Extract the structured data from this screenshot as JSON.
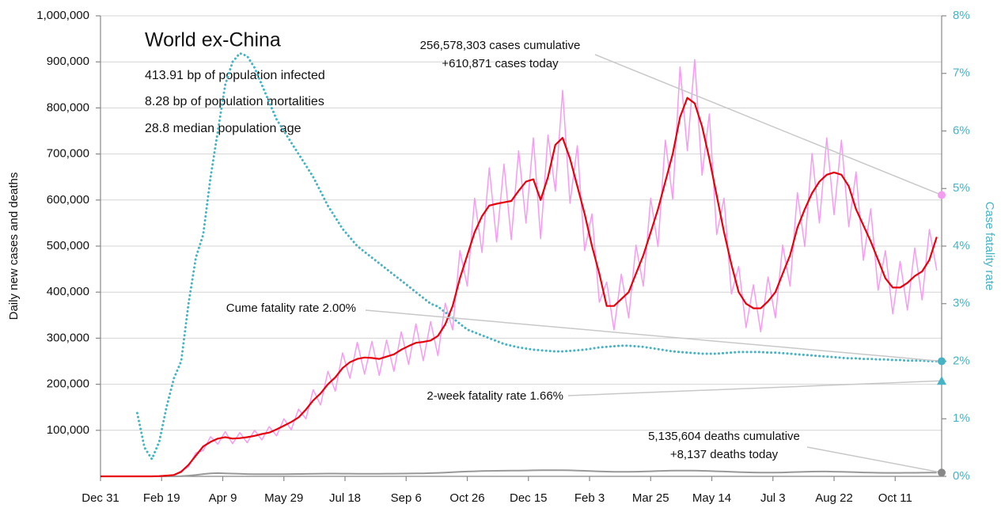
{
  "chart_data": {
    "type": "line",
    "title": "World ex-China",
    "subtitle": [
      "413.91 bp of population infected",
      "8.28 bp of population mortalities",
      "28.8 median population age"
    ],
    "ylabel": "Daily new cases and deaths",
    "y2label": "Case fatality rate",
    "xlim": [
      0,
      688
    ],
    "xticks": [
      {
        "value": 0,
        "label": "Dec 31"
      },
      {
        "value": 50,
        "label": "Feb 19"
      },
      {
        "value": 100,
        "label": "Apr 9"
      },
      {
        "value": 150,
        "label": "May 29"
      },
      {
        "value": 200,
        "label": "Jul 18"
      },
      {
        "value": 250,
        "label": "Sep 6"
      },
      {
        "value": 300,
        "label": "Oct 26"
      },
      {
        "value": 350,
        "label": "Dec 15"
      },
      {
        "value": 400,
        "label": "Feb 3"
      },
      {
        "value": 450,
        "label": "Mar 25"
      },
      {
        "value": 500,
        "label": "May 14"
      },
      {
        "value": 550,
        "label": "Jul 3"
      },
      {
        "value": 600,
        "label": "Aug 22"
      },
      {
        "value": 650,
        "label": "Oct 11"
      }
    ],
    "ylim": [
      0,
      1000000
    ],
    "yticks": [
      {
        "value": 100000,
        "label": "100,000"
      },
      {
        "value": 200000,
        "label": "200,000"
      },
      {
        "value": 300000,
        "label": "300,000"
      },
      {
        "value": 400000,
        "label": "400,000"
      },
      {
        "value": 500000,
        "label": "500,000"
      },
      {
        "value": 600000,
        "label": "600,000"
      },
      {
        "value": 700000,
        "label": "700,000"
      },
      {
        "value": 800000,
        "label": "800,000"
      },
      {
        "value": 900000,
        "label": "900,000"
      },
      {
        "value": 1000000,
        "label": "1,000,000"
      }
    ],
    "y2lim": [
      0,
      8
    ],
    "y2ticks": [
      {
        "value": 0,
        "label": "0%"
      },
      {
        "value": 1,
        "label": "1%"
      },
      {
        "value": 2,
        "label": "2%"
      },
      {
        "value": 3,
        "label": "3%"
      },
      {
        "value": 4,
        "label": "4%"
      },
      {
        "value": 5,
        "label": "5%"
      },
      {
        "value": 6,
        "label": "6%"
      },
      {
        "value": 7,
        "label": "7%"
      },
      {
        "value": 8,
        "label": "8%"
      }
    ],
    "y2color": "#45b3c4",
    "grid": true,
    "x": [
      0,
      6,
      12,
      18,
      24,
      30,
      36,
      42,
      48,
      54,
      60,
      66,
      72,
      78,
      84,
      90,
      96,
      102,
      108,
      114,
      120,
      126,
      132,
      138,
      144,
      150,
      156,
      162,
      168,
      174,
      180,
      186,
      192,
      198,
      204,
      210,
      216,
      222,
      228,
      234,
      240,
      246,
      252,
      258,
      264,
      270,
      276,
      282,
      288,
      294,
      300,
      306,
      312,
      318,
      324,
      330,
      336,
      342,
      348,
      354,
      360,
      366,
      372,
      378,
      384,
      390,
      396,
      402,
      408,
      414,
      420,
      426,
      432,
      438,
      444,
      450,
      456,
      462,
      468,
      474,
      480,
      486,
      492,
      498,
      504,
      510,
      516,
      522,
      528,
      534,
      540,
      546,
      552,
      558,
      564,
      570,
      576,
      582,
      588,
      594,
      600,
      606,
      612,
      618,
      624,
      630,
      636,
      642,
      648,
      654,
      660,
      666,
      672,
      678,
      684
    ],
    "series": [
      {
        "color": "#999999",
        "width": 2,
        "values": [
          0,
          0,
          0,
          0,
          0,
          0,
          0,
          0,
          0,
          0,
          200,
          500,
          1500,
          3000,
          5000,
          6500,
          7000,
          6500,
          6000,
          5500,
          5000,
          4800,
          4700,
          4600,
          4700,
          4800,
          5000,
          5200,
          5400,
          5600,
          5800,
          6000,
          6000,
          5900,
          5800,
          5700,
          5600,
          5600,
          5700,
          5800,
          5900,
          6000,
          6100,
          6300,
          6600,
          7000,
          7600,
          8200,
          9000,
          9800,
          10500,
          11000,
          11500,
          11800,
          12000,
          12200,
          12300,
          12500,
          12800,
          13000,
          13200,
          13300,
          13400,
          13300,
          13000,
          12500,
          12000,
          11400,
          10800,
          10300,
          10000,
          9900,
          10000,
          10200,
          10500,
          11000,
          11500,
          12000,
          12300,
          12500,
          12600,
          12400,
          12000,
          11500,
          11000,
          10400,
          9800,
          9200,
          8700,
          8400,
          8200,
          8100,
          8200,
          8500,
          9000,
          9500,
          10000,
          10300,
          10500,
          10400,
          10200,
          9900,
          9500,
          9000,
          8500,
          8100,
          7800,
          7600,
          7500,
          7600,
          7700,
          7800,
          7900,
          8000,
          8100
        ]
      },
      {
        "color": "#45b3c4",
        "width": 3,
        "dotted": true,
        "axis": "y2",
        "values": [
          null,
          null,
          null,
          null,
          null,
          1.1,
          0.5,
          0.3,
          0.6,
          1.2,
          1.7,
          2.0,
          3.0,
          3.8,
          4.2,
          5.2,
          6.0,
          6.8,
          7.2,
          7.35,
          7.3,
          7.1,
          6.8,
          6.5,
          6.2,
          6.0,
          5.8,
          5.6,
          5.4,
          5.2,
          4.95,
          4.7,
          4.5,
          4.3,
          4.15,
          4.0,
          3.9,
          3.8,
          3.7,
          3.6,
          3.5,
          3.4,
          3.3,
          3.2,
          3.1,
          3.0,
          2.95,
          2.85,
          2.75,
          2.65,
          2.55,
          2.5,
          2.45,
          2.4,
          2.35,
          2.3,
          2.27,
          2.24,
          2.22,
          2.2,
          2.19,
          2.18,
          2.17,
          2.17,
          2.18,
          2.19,
          2.2,
          2.22,
          2.24,
          2.25,
          2.26,
          2.27,
          2.27,
          2.26,
          2.25,
          2.23,
          2.21,
          2.19,
          2.17,
          2.16,
          2.15,
          2.14,
          2.13,
          2.13,
          2.13,
          2.14,
          2.15,
          2.16,
          2.16,
          2.16,
          2.16,
          2.15,
          2.15,
          2.14,
          2.13,
          2.12,
          2.11,
          2.1,
          2.09,
          2.08,
          2.07,
          2.06,
          2.05,
          2.05,
          2.04,
          2.04,
          2.03,
          2.03,
          2.02,
          2.02,
          2.01,
          2.01,
          2.01,
          2.0,
          2.0
        ]
      },
      {
        "color": "#f59cf0",
        "width": 1.5,
        "values": [
          0,
          0,
          0,
          0,
          0,
          0,
          0,
          0,
          0,
          2000,
          2000,
          12000,
          21000,
          51000,
          56000,
          86000,
          70000,
          97000,
          71000,
          95000,
          73000,
          100000,
          79000,
          108000,
          88000,
          125000,
          101000,
          146000,
          125000,
          188000,
          155000,
          228000,
          185000,
          268000,
          213000,
          291000,
          222000,
          293000,
          219000,
          296000,
          228000,
          314000,
          243000,
          331000,
          251000,
          336000,
          262000,
          376000,
          318000,
          490000,
          413000,
          604000,
          486000,
          670000,
          509000,
          678000,
          514000,
          707000,
          550000,
          735000,
          516000,
          741000,
          619000,
          838000,
          593000,
          718000,
          490000,
          570000,
          378000,
          422000,
          318000,
          439000,
          344000,
          502000,
          413000,
          604000,
          499000,
          730000,
          602000,
          889000,
          707000,
          905000,
          654000,
          787000,
          525000,
          604000,
          396000,
          456000,
          323000,
          416000,
          314000,
          433000,
          344000,
          502000,
          413000,
          616000,
          499000,
          701000,
          550000,
          735000,
          568000,
          730000,
          542000,
          661000,
          469000,
          581000,
          404000,
          490000,
          353000,
          467000,
          361000,
          496000,
          383000,
          536000,
          447000
        ]
      },
      {
        "color": "#e8000b",
        "width": 2.2,
        "values": [
          0,
          0,
          0,
          0,
          0,
          0,
          0,
          0,
          500,
          1500,
          3000,
          10000,
          25000,
          45000,
          65000,
          75000,
          82000,
          85000,
          82000,
          83000,
          85000,
          88000,
          92000,
          95000,
          102000,
          110000,
          118000,
          128000,
          145000,
          165000,
          180000,
          200000,
          215000,
          235000,
          248000,
          255000,
          258000,
          257000,
          255000,
          260000,
          265000,
          275000,
          283000,
          290000,
          292000,
          295000,
          305000,
          330000,
          370000,
          430000,
          480000,
          530000,
          565000,
          588000,
          592000,
          595000,
          598000,
          620000,
          640000,
          645000,
          600000,
          650000,
          720000,
          735000,
          690000,
          630000,
          570000,
          500000,
          440000,
          370000,
          370000,
          385000,
          400000,
          440000,
          480000,
          530000,
          580000,
          640000,
          700000,
          780000,
          822000,
          810000,
          760000,
          690000,
          610000,
          530000,
          460000,
          400000,
          375000,
          365000,
          365000,
          380000,
          400000,
          440000,
          480000,
          540000,
          580000,
          615000,
          640000,
          655000,
          660000,
          655000,
          630000,
          580000,
          545000,
          510000,
          470000,
          430000,
          410000,
          410000,
          420000,
          435000,
          445000,
          470000,
          520000
        ]
      }
    ],
    "annotations": [
      {
        "lines": [
          "256,578,303 cases cumulative",
          "+610,871 cases today"
        ],
        "value": 610871,
        "color": "#f59cf0",
        "marker": "circle"
      },
      {
        "lines": [
          "Cume fatality rate 2.00%"
        ],
        "value": 2.0,
        "axis": "y2",
        "color": "#45b3c4",
        "marker": "circle"
      },
      {
        "lines": [
          "2-week fatality rate 1.66%"
        ],
        "value": 1.66,
        "axis": "y2",
        "color": "#45b3c4",
        "marker": "triangle"
      },
      {
        "lines": [
          "5,135,604 deaths cumulative",
          "+8,137 deaths today"
        ],
        "value": 8137,
        "color": "#888888",
        "marker": "circle"
      }
    ]
  }
}
